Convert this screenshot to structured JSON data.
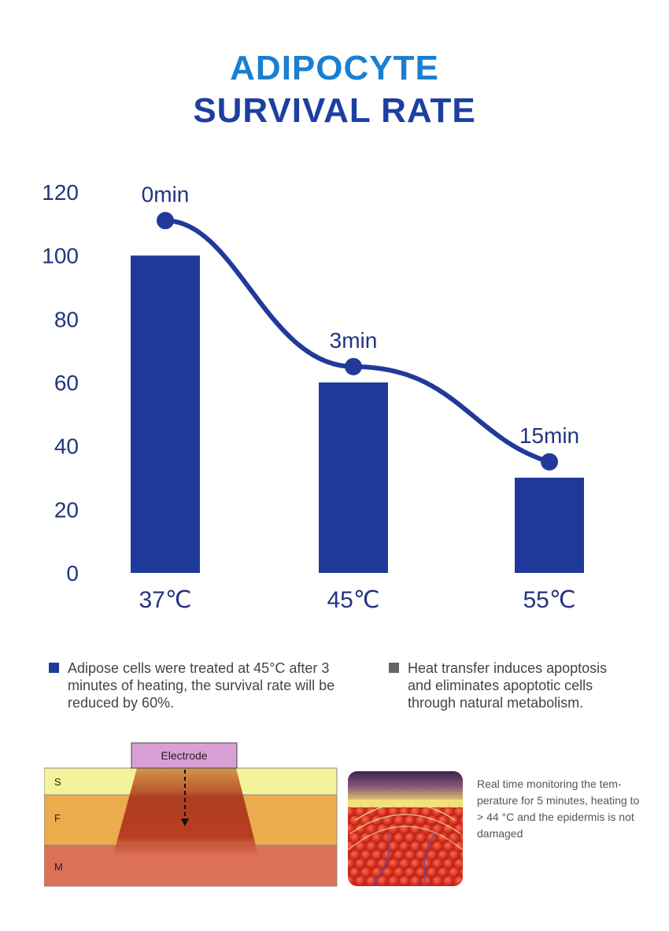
{
  "title": {
    "line1": "ADIPOCYTE",
    "line2": "SURVIVAL RATE"
  },
  "colors": {
    "bar": "#1f3a9a",
    "line": "#22399b",
    "axis_text": "#23347f",
    "title_line1": "#1a7fd1",
    "title_line2": "#1c3fa0"
  },
  "chart_data": {
    "type": "bar",
    "title": "",
    "xlabel": "",
    "ylabel": "",
    "categories": [
      "37℃",
      "45℃",
      "55℃"
    ],
    "series": [
      {
        "type": "bar",
        "values": [
          100,
          60,
          30
        ]
      },
      {
        "type": "line",
        "values": [
          111,
          65,
          35
        ],
        "labels": [
          "0min",
          "3min",
          "15min"
        ]
      }
    ],
    "yticks": [
      0,
      20,
      40,
      60,
      80,
      100,
      120
    ],
    "ylim": [
      0,
      120
    ],
    "grid": false,
    "legend": "none"
  },
  "notes": [
    {
      "text": "Adipose cells were treated at 45°C after 3 minutes of heating, the survival rate will be reduced by 60%.",
      "bullet_color": "#1f3a9a"
    },
    {
      "text": "Heat transfer induces apoptosis and eliminates apoptotic cells through natural metabolism.",
      "bullet_color": "#666666"
    }
  ],
  "diagram": {
    "electrode_label": "Electrode",
    "layers": [
      "S",
      "F",
      "M"
    ]
  },
  "caption": "Real time monitoring the tem-perature for 5 minutes, heating to > 44 °C and the epidermis is not damaged"
}
